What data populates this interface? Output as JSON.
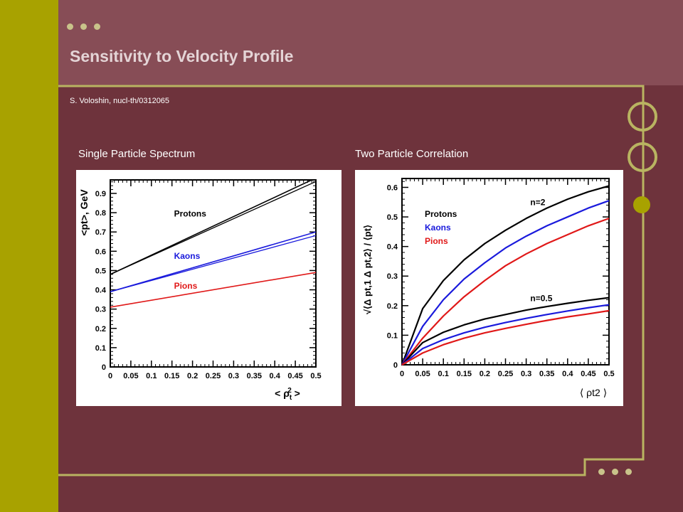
{
  "slide": {
    "title": "Sensitivity to Velocity Profile",
    "citation": "S. Voloshin, nucl-th/0312065",
    "colors": {
      "background": "#6e333c",
      "header": "#874d56",
      "accent_bar": "#a8a200",
      "frame": "#b9b461",
      "title": "#e4d4d6"
    }
  },
  "chart_data": [
    {
      "type": "line",
      "caption": "Single Particle Spectrum",
      "xlabel": "< ρt2 >",
      "ylabel": "<pt>, GeV",
      "xlim": [
        0,
        0.5
      ],
      "ylim": [
        0,
        0.97
      ],
      "x_ticks": [
        "0",
        "0.05",
        "0.1",
        "0.15",
        "0.2",
        "0.25",
        "0.3",
        "0.35",
        "0.4",
        "0.45",
        "0.5"
      ],
      "y_ticks": [
        "0",
        "0.1",
        "0.2",
        "0.3",
        "0.4",
        "0.5",
        "0.6",
        "0.7",
        "0.8",
        "0.9"
      ],
      "series": [
        {
          "name": "Protons",
          "color": "#000000",
          "x": [
            0,
            0.5
          ],
          "y": [
            0.48,
            0.98
          ],
          "double": true
        },
        {
          "name": "Kaons",
          "color": "#1a1adc",
          "x": [
            0,
            0.5
          ],
          "y": [
            0.39,
            0.7
          ],
          "double": true
        },
        {
          "name": "Pions",
          "color": "#e01818",
          "x": [
            0,
            0.5
          ],
          "y": [
            0.31,
            0.49
          ],
          "double": false
        }
      ],
      "legend": [
        {
          "text": "Protons",
          "color": "#000000",
          "x": 0.155,
          "y": 0.78
        },
        {
          "text": "Kaons",
          "color": "#1a1adc",
          "x": 0.155,
          "y": 0.56
        },
        {
          "text": "Pions",
          "color": "#e01818",
          "x": 0.155,
          "y": 0.405
        }
      ]
    },
    {
      "type": "line",
      "caption": "Two Particle Correlation",
      "xlabel": "⟨ ρt2 ⟩",
      "ylabel": "√⟨Δ pt,1 Δ pt,2⟩ / ⟨pt⟩",
      "xlim": [
        0,
        0.5
      ],
      "ylim": [
        0,
        0.63
      ],
      "x_ticks": [
        "0",
        "0.05",
        "0.1",
        "0.15",
        "0.2",
        "0.25",
        "0.3",
        "0.35",
        "0.4",
        "0.45",
        "0.5"
      ],
      "y_ticks": [
        "0",
        "0.1",
        "0.2",
        "0.3",
        "0.4",
        "0.5",
        "0.6"
      ],
      "legend": [
        {
          "text": "Protons",
          "color": "#000000"
        },
        {
          "text": "Kaons",
          "color": "#1a1adc"
        },
        {
          "text": "Pions",
          "color": "#e01818"
        }
      ],
      "annotations": [
        {
          "text": "n=2",
          "x": 0.31,
          "y": 0.54
        },
        {
          "text": "n=0.5",
          "x": 0.31,
          "y": 0.215
        }
      ],
      "series": [
        {
          "name": "Protons",
          "group": "n=2",
          "color": "#000000",
          "x": [
            0,
            0.05,
            0.1,
            0.15,
            0.2,
            0.25,
            0.3,
            0.35,
            0.4,
            0.45,
            0.5
          ],
          "y": [
            0,
            0.19,
            0.285,
            0.355,
            0.41,
            0.455,
            0.495,
            0.53,
            0.56,
            0.585,
            0.605
          ]
        },
        {
          "name": "Kaons",
          "group": "n=2",
          "color": "#1a1adc",
          "x": [
            0,
            0.05,
            0.1,
            0.15,
            0.2,
            0.25,
            0.3,
            0.35,
            0.4,
            0.45,
            0.5
          ],
          "y": [
            0,
            0.13,
            0.22,
            0.29,
            0.345,
            0.395,
            0.435,
            0.47,
            0.5,
            0.53,
            0.555
          ]
        },
        {
          "name": "Pions",
          "group": "n=2",
          "color": "#e01818",
          "x": [
            0,
            0.05,
            0.1,
            0.15,
            0.2,
            0.25,
            0.3,
            0.35,
            0.4,
            0.45,
            0.5
          ],
          "y": [
            0,
            0.09,
            0.165,
            0.23,
            0.285,
            0.335,
            0.375,
            0.41,
            0.44,
            0.47,
            0.495
          ]
        },
        {
          "name": "Protons",
          "group": "n=0.5",
          "color": "#000000",
          "x": [
            0,
            0.05,
            0.1,
            0.15,
            0.2,
            0.25,
            0.3,
            0.35,
            0.4,
            0.45,
            0.5
          ],
          "y": [
            0,
            0.075,
            0.11,
            0.135,
            0.155,
            0.17,
            0.185,
            0.197,
            0.208,
            0.218,
            0.227
          ]
        },
        {
          "name": "Kaons",
          "group": "n=0.5",
          "color": "#1a1adc",
          "x": [
            0,
            0.05,
            0.1,
            0.15,
            0.2,
            0.25,
            0.3,
            0.35,
            0.4,
            0.45,
            0.5
          ],
          "y": [
            0,
            0.055,
            0.085,
            0.108,
            0.127,
            0.143,
            0.157,
            0.17,
            0.182,
            0.193,
            0.203
          ]
        },
        {
          "name": "Pions",
          "group": "n=0.5",
          "color": "#e01818",
          "x": [
            0,
            0.05,
            0.1,
            0.15,
            0.2,
            0.25,
            0.3,
            0.35,
            0.4,
            0.45,
            0.5
          ],
          "y": [
            0,
            0.04,
            0.068,
            0.09,
            0.108,
            0.123,
            0.137,
            0.15,
            0.162,
            0.172,
            0.183
          ]
        }
      ]
    }
  ]
}
